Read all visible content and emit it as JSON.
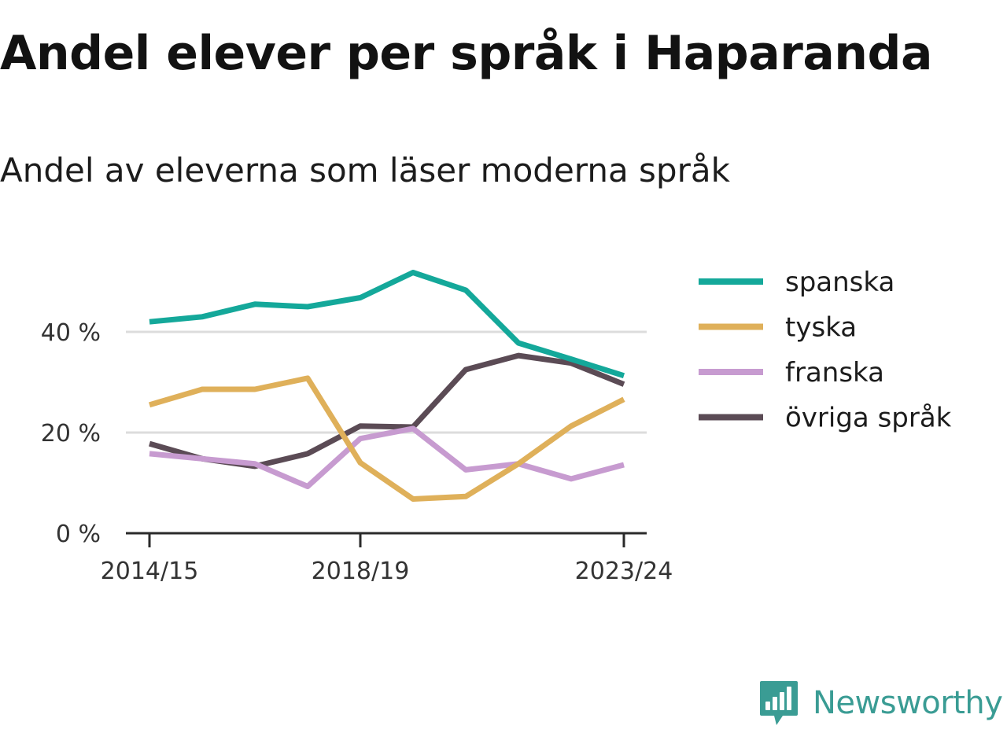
{
  "title": "Andel elever per språk i Haparanda",
  "subtitle": "Andel av eleverna som läser moderna språk",
  "brand": {
    "name": "Newsworthy",
    "color": "#3a9c94",
    "icon": "newsworthy-logo-icon"
  },
  "chart_data": {
    "type": "line",
    "x": [
      "2014/15",
      "2015/16",
      "2016/17",
      "2017/18",
      "2018/19",
      "2019/20",
      "2020/21",
      "2021/22",
      "2022/23",
      "2023/24"
    ],
    "xticks": [
      "2014/15",
      "2018/19",
      "2023/24"
    ],
    "yticks": [
      0,
      20,
      40
    ],
    "ytick_labels": [
      "0 %",
      "20 %",
      "40 %"
    ],
    "ylim": [
      0,
      55
    ],
    "grid": true,
    "legend_position": "right",
    "series": [
      {
        "name": "spanska",
        "color": "#14a89a",
        "values": [
          42.0,
          43.0,
          45.5,
          45.0,
          46.8,
          51.8,
          48.3,
          37.8,
          34.6,
          31.3
        ]
      },
      {
        "name": "tyska",
        "color": "#dfb05a",
        "values": [
          25.5,
          28.6,
          28.6,
          30.8,
          14.0,
          6.8,
          7.3,
          13.8,
          21.3,
          26.6
        ]
      },
      {
        "name": "franska",
        "color": "#c79bd0",
        "values": [
          15.8,
          14.8,
          13.8,
          9.3,
          18.8,
          20.8,
          12.6,
          13.8,
          10.8,
          13.6
        ]
      },
      {
        "name": "övriga språk",
        "color": "#5b4b55",
        "values": [
          17.8,
          14.8,
          13.3,
          15.8,
          21.3,
          21.1,
          32.5,
          35.3,
          33.8,
          29.6
        ]
      }
    ]
  }
}
